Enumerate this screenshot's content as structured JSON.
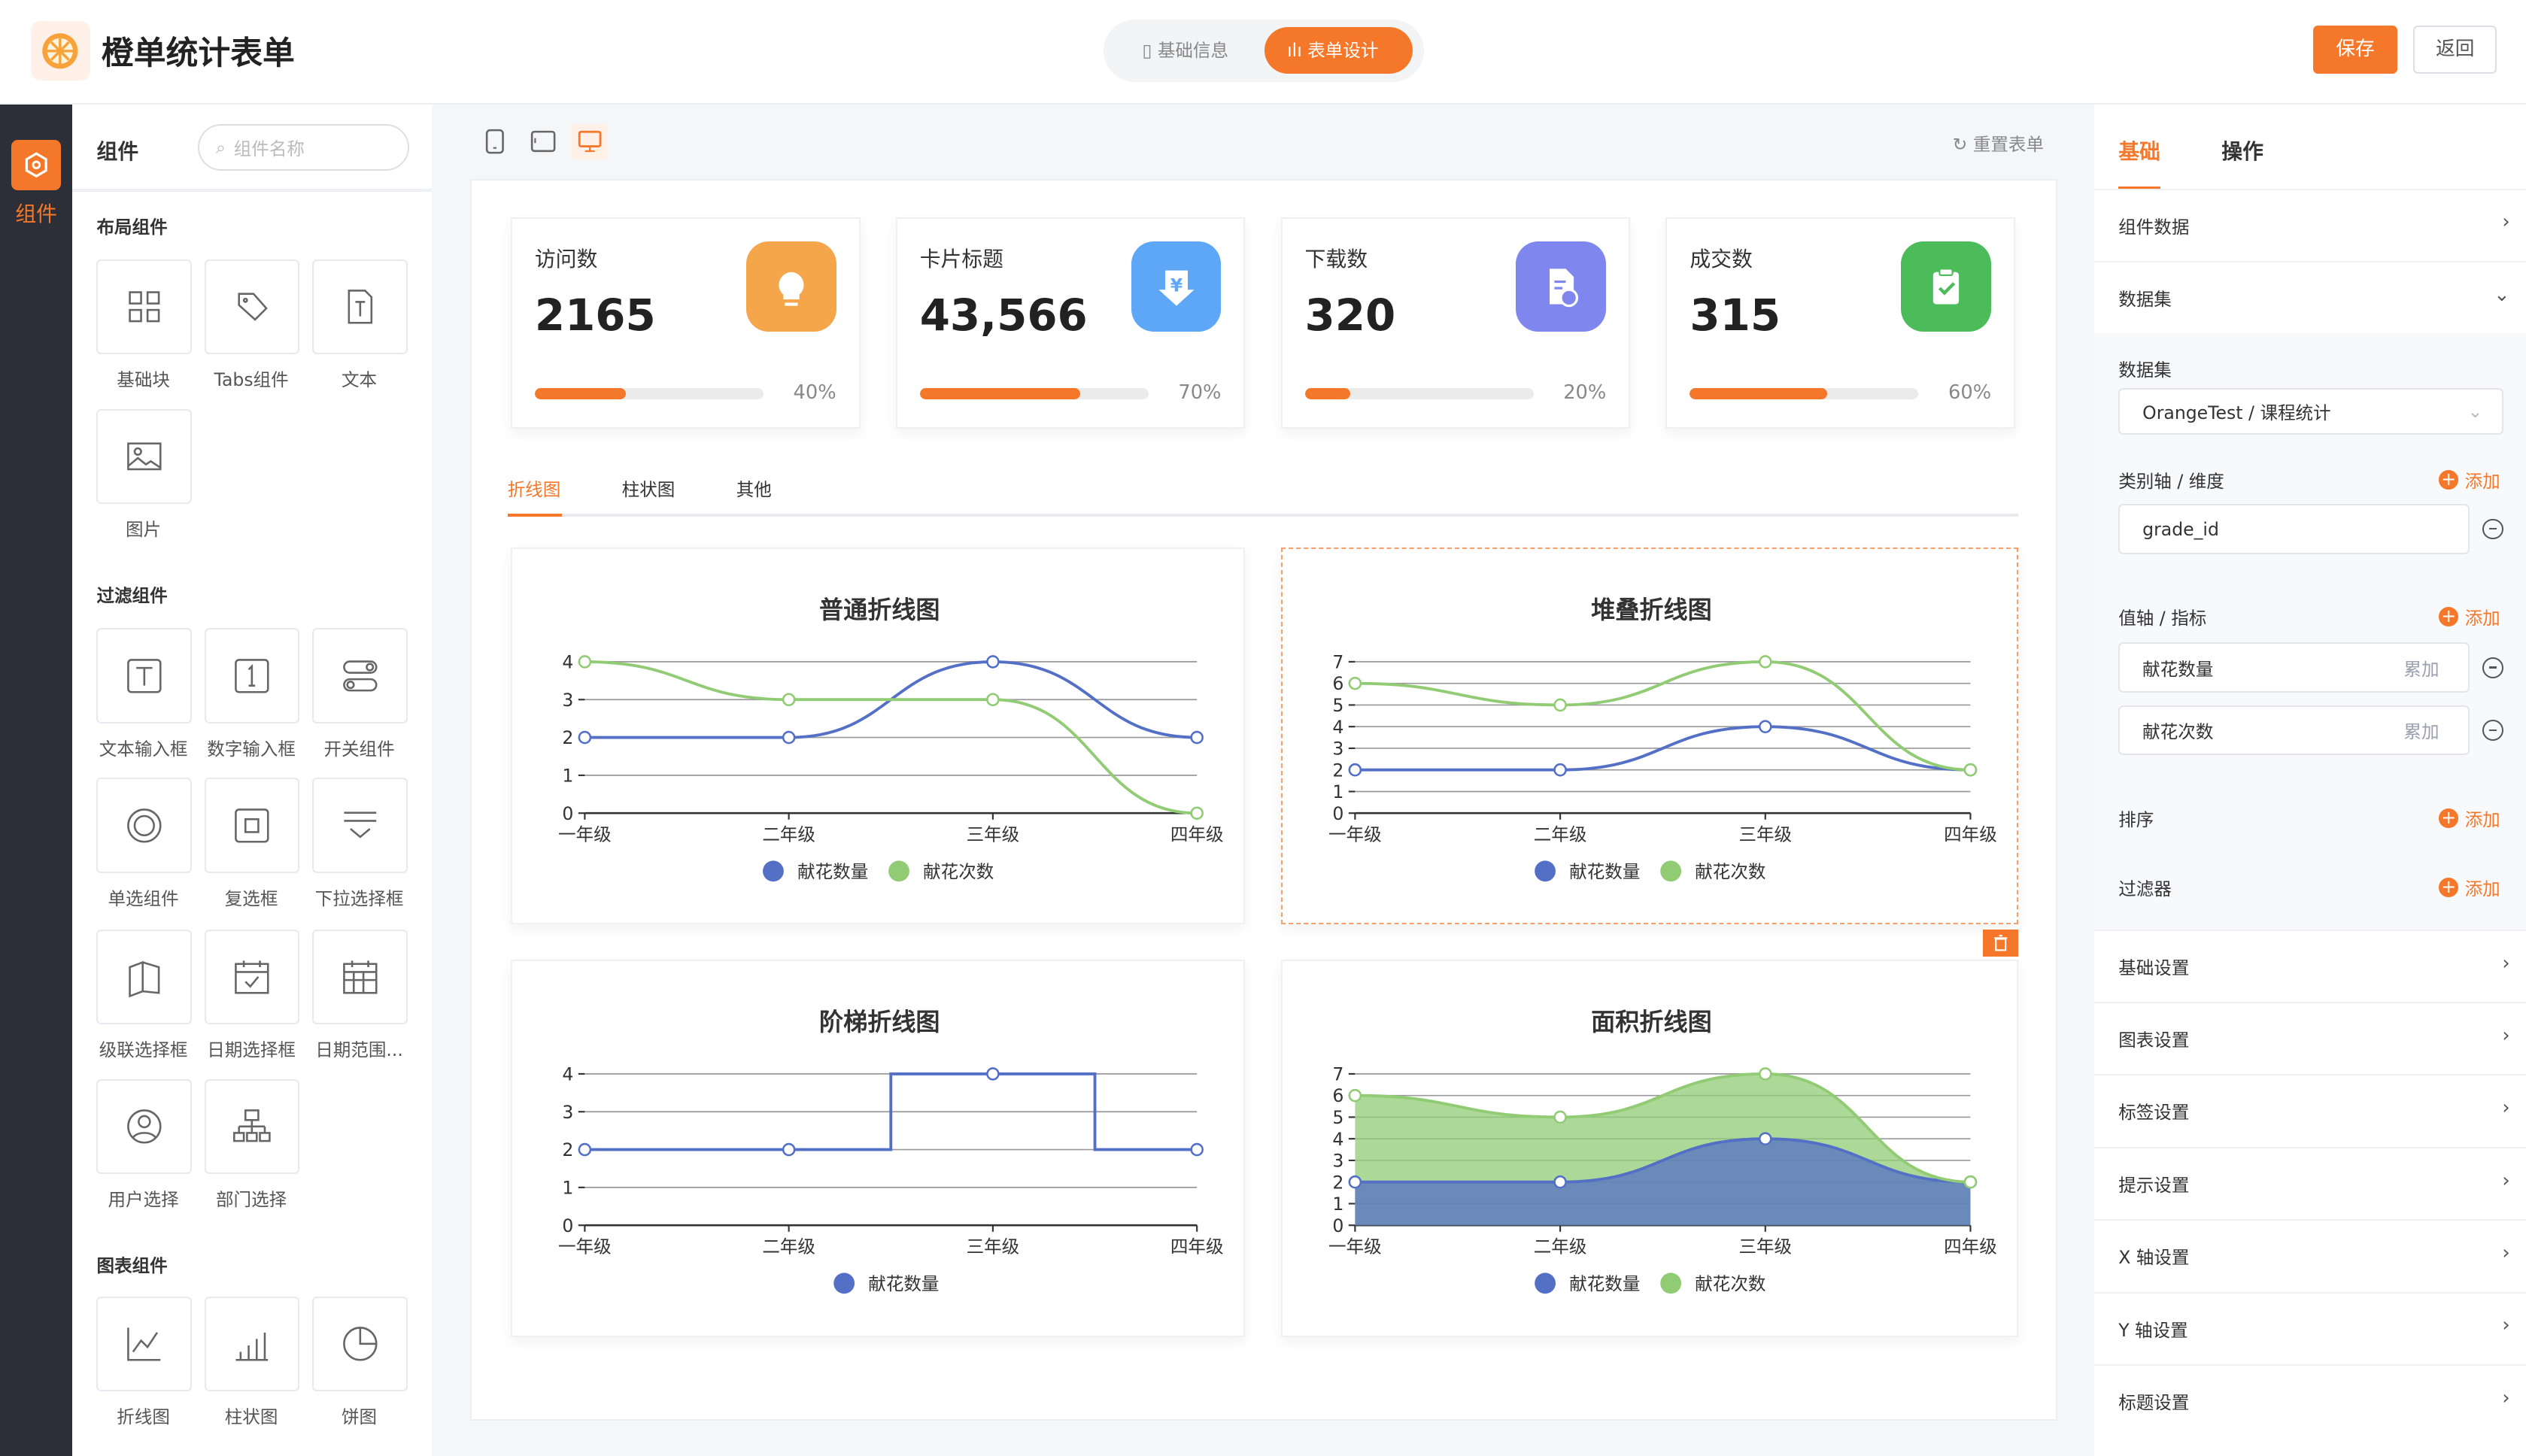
{
  "header": {
    "title": "橙单统计表单",
    "segments": [
      "基础信息",
      "表单设计"
    ],
    "active_segment": 1,
    "save": "保存",
    "back": "返回"
  },
  "rail": {
    "label": "组件"
  },
  "components": {
    "title": "组件",
    "search_placeholder": "组件名称",
    "groups": [
      {
        "name": "布局组件",
        "items": [
          {
            "label": "基础块",
            "icon": "grid-icon"
          },
          {
            "label": "Tabs组件",
            "icon": "tag-icon"
          },
          {
            "label": "文本",
            "icon": "text-file-icon"
          },
          {
            "label": "图片",
            "icon": "image-icon"
          }
        ]
      },
      {
        "name": "过滤组件",
        "items": [
          {
            "label": "文本输入框",
            "icon": "text-input-icon"
          },
          {
            "label": "数字输入框",
            "icon": "number-input-icon"
          },
          {
            "label": "开关组件",
            "icon": "switch-icon"
          },
          {
            "label": "单选组件",
            "icon": "radio-icon"
          },
          {
            "label": "复选框",
            "icon": "checkbox-icon"
          },
          {
            "label": "下拉选择框",
            "icon": "dropdown-icon"
          },
          {
            "label": "级联选择框",
            "icon": "cascade-icon"
          },
          {
            "label": "日期选择框",
            "icon": "calendar-icon"
          },
          {
            "label": "日期范围...",
            "icon": "date-range-icon"
          },
          {
            "label": "用户选择",
            "icon": "user-icon"
          },
          {
            "label": "部门选择",
            "icon": "org-icon"
          }
        ]
      },
      {
        "name": "图表组件",
        "items": [
          {
            "label": "折线图",
            "icon": "line-chart-icon"
          },
          {
            "label": "柱状图",
            "icon": "bar-chart-icon"
          },
          {
            "label": "饼图",
            "icon": "pie-chart-icon"
          }
        ]
      }
    ]
  },
  "canvas_toolbar": {
    "devices": [
      "mobile-icon",
      "tablet-icon",
      "desktop-icon"
    ],
    "active_device": 2,
    "reset": "重置表单"
  },
  "stats": [
    {
      "title": "访问数",
      "value": "2165",
      "percent": 40,
      "percent_label": "40%",
      "icon": "bulb-icon",
      "color": "#f5a54a"
    },
    {
      "title": "卡片标题",
      "value": "43,566",
      "percent": 70,
      "percent_label": "70%",
      "icon": "yuan-download-icon",
      "color": "#5ea6f6"
    },
    {
      "title": "下载数",
      "value": "320",
      "percent": 20,
      "percent_label": "20%",
      "icon": "file-download-icon",
      "color": "#7f86ee"
    },
    {
      "title": "成交数",
      "value": "315",
      "percent": 60,
      "percent_label": "60%",
      "icon": "clipboard-check-icon",
      "color": "#4cbc5a"
    }
  ],
  "chart_tabs": [
    "折线图",
    "柱状图",
    "其他"
  ],
  "active_chart_tab": 0,
  "chart_data": [
    {
      "type": "line",
      "title": "普通折线图",
      "smooth": true,
      "stacked": false,
      "categories": [
        "一年级",
        "二年级",
        "三年级",
        "四年级"
      ],
      "ylim": [
        0,
        4
      ],
      "yticks": [
        0,
        1,
        2,
        3,
        4
      ],
      "legend": "bottom",
      "series": [
        {
          "name": "献花数量",
          "values": [
            2,
            2,
            4,
            2
          ],
          "color": "#5470c6"
        },
        {
          "name": "献花次数",
          "values": [
            4,
            3,
            3,
            0
          ],
          "color": "#91cc75"
        }
      ]
    },
    {
      "type": "line",
      "title": "堆叠折线图",
      "smooth": true,
      "stacked": true,
      "categories": [
        "一年级",
        "二年级",
        "三年级",
        "四年级"
      ],
      "ylim": [
        0,
        7
      ],
      "yticks": [
        0,
        1,
        2,
        3,
        4,
        5,
        6,
        7
      ],
      "legend": "bottom",
      "series": [
        {
          "name": "献花数量",
          "values": [
            2,
            2,
            4,
            2
          ],
          "color": "#5470c6"
        },
        {
          "name": "献花次数",
          "values": [
            4,
            3,
            3,
            0
          ],
          "color": "#91cc75"
        }
      ]
    },
    {
      "type": "line",
      "title": "阶梯折线图",
      "step": true,
      "stacked": false,
      "categories": [
        "一年级",
        "二年级",
        "三年级",
        "四年级"
      ],
      "ylim": [
        0,
        4
      ],
      "yticks": [
        0,
        1,
        2,
        3,
        4
      ],
      "legend": "bottom",
      "series": [
        {
          "name": "献花数量",
          "values": [
            2,
            2,
            4,
            2
          ],
          "color": "#5470c6"
        }
      ]
    },
    {
      "type": "area",
      "title": "面积折线图",
      "smooth": true,
      "stacked": true,
      "categories": [
        "一年级",
        "二年级",
        "三年级",
        "四年级"
      ],
      "ylim": [
        0,
        7
      ],
      "yticks": [
        0,
        1,
        2,
        3,
        4,
        5,
        6,
        7
      ],
      "legend": "bottom",
      "series": [
        {
          "name": "献花数量",
          "values": [
            2,
            2,
            4,
            2
          ],
          "color": "#5470c6"
        },
        {
          "name": "献花次数",
          "values": [
            4,
            3,
            3,
            0
          ],
          "color": "#91cc75"
        }
      ]
    }
  ],
  "right": {
    "tabs": [
      "基础",
      "操作"
    ],
    "active_tab": 0,
    "component_data": "组件数据",
    "dataset_section": "数据集",
    "dataset_label": "数据集",
    "dataset_value": "OrangeTest / 课程统计",
    "category_label": "类别轴 / 维度",
    "add": "添加",
    "category_value": "grade_id",
    "value_label": "值轴 / 指标",
    "metrics": [
      {
        "name": "献花数量",
        "agg": "累加"
      },
      {
        "name": "献花次数",
        "agg": "累加"
      }
    ],
    "sort_label": "排序",
    "filter_label": "过滤器",
    "settings": [
      "基础设置",
      "图表设置",
      "标签设置",
      "提示设置",
      "X 轴设置",
      "Y 轴设置",
      "标题设置"
    ]
  }
}
